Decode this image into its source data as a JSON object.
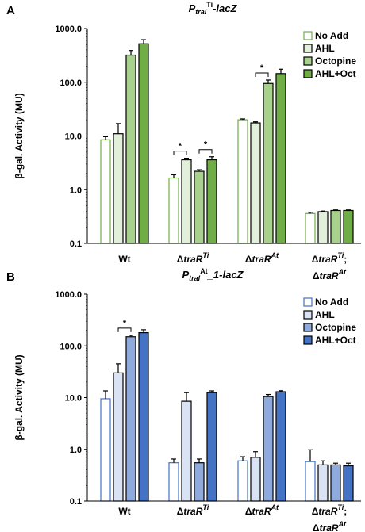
{
  "chart_data": [
    {
      "type": "bar",
      "panel_label": "A",
      "title_main": "P",
      "title_sub": "traI",
      "title_sup": "Ti",
      "title_tail": "-lacZ",
      "ylabel": "β-gal. Activity (MU)",
      "yscale": "log",
      "ylim": [
        0.1,
        1000
      ],
      "yticks": [
        "1000.0",
        "100.0",
        "10.0",
        "1.0",
        "0.1"
      ],
      "legend_position": "top-right",
      "categories": [
        {
          "line1_pre": "",
          "line1_main": "Wt",
          "line1_sup": "",
          "line2_pre": "",
          "line2_main": "",
          "line2_sup": ""
        },
        {
          "line1_pre": "Δ",
          "line1_main": "traR",
          "line1_sup": "Ti",
          "line2_pre": "",
          "line2_main": "",
          "line2_sup": ""
        },
        {
          "line1_pre": "Δ",
          "line1_main": "traR",
          "line1_sup": "At",
          "line2_pre": "",
          "line2_main": "",
          "line2_sup": ""
        },
        {
          "line1_pre": "Δ",
          "line1_main": "traR",
          "line1_sup": "Ti",
          "line1_post": ";",
          "line2_pre": "Δ",
          "line2_main": "traR",
          "line2_sup": "At"
        }
      ],
      "series": [
        {
          "name": "No Add",
          "fill": "#ffffff",
          "stroke": "#70ad47",
          "values": [
            8.5,
            1.65,
            20,
            0.36
          ],
          "errors": [
            1.2,
            0.25,
            0.8,
            0.02
          ]
        },
        {
          "name": "AHL",
          "fill": "#e2efda",
          "stroke": "#000000",
          "values": [
            11,
            3.6,
            17.5,
            0.39
          ],
          "errors": [
            6,
            0.25,
            0.8,
            0.01
          ]
        },
        {
          "name": "Octopine",
          "fill": "#a9d18e",
          "stroke": "#000000",
          "values": [
            320,
            2.2,
            95,
            0.41
          ],
          "errors": [
            70,
            0.15,
            15,
            0.01
          ]
        },
        {
          "name": "AHL+Oct",
          "fill": "#70ad47",
          "stroke": "#000000",
          "values": [
            520,
            3.6,
            145,
            0.41
          ],
          "errors": [
            100,
            0.5,
            30,
            0.01
          ]
        }
      ],
      "significance": [
        {
          "label": "*",
          "category": 1,
          "from": 0,
          "to": 1
        },
        {
          "label": "*",
          "category": 1,
          "from": 2,
          "to": 3
        },
        {
          "label": "*",
          "category": 2,
          "from": 1,
          "to": 2
        }
      ]
    },
    {
      "type": "bar",
      "panel_label": "B",
      "title_main": "P",
      "title_sub": "traI",
      "title_sup": "At",
      "title_tail": "_1-lacZ",
      "ylabel": "β-gal. Activity (MU)",
      "yscale": "log",
      "ylim": [
        0.1,
        1000
      ],
      "yticks": [
        "1000.0",
        "100.0",
        "10.0",
        "1.0",
        "0.1"
      ],
      "legend_position": "top-right",
      "categories": [
        {
          "line1_pre": "",
          "line1_main": "Wt",
          "line1_sup": "",
          "line2_pre": "",
          "line2_main": "",
          "line2_sup": ""
        },
        {
          "line1_pre": "Δ",
          "line1_main": "traR",
          "line1_sup": "Ti",
          "line2_pre": "",
          "line2_main": "",
          "line2_sup": ""
        },
        {
          "line1_pre": "Δ",
          "line1_main": "traR",
          "line1_sup": "At",
          "line2_pre": "",
          "line2_main": "",
          "line2_sup": ""
        },
        {
          "line1_pre": "Δ",
          "line1_main": "traR",
          "line1_sup": "Ti",
          "line1_post": ";",
          "line2_pre": "Δ",
          "line2_main": "traR",
          "line2_sup": "At"
        }
      ],
      "series": [
        {
          "name": "No Add",
          "fill": "#ffffff",
          "stroke": "#4472c4",
          "values": [
            9.5,
            0.55,
            0.6,
            0.58
          ],
          "errors": [
            4,
            0.1,
            0.12,
            0.4
          ]
        },
        {
          "name": "AHL",
          "fill": "#dae3f3",
          "stroke": "#000000",
          "values": [
            30,
            8.5,
            0.7,
            0.5
          ],
          "errors": [
            15,
            4,
            0.2,
            0.1
          ]
        },
        {
          "name": "Octopine",
          "fill": "#8faadc",
          "stroke": "#000000",
          "values": [
            150,
            0.55,
            10.5,
            0.5
          ],
          "errors": [
            10,
            0.1,
            1,
            0.04
          ]
        },
        {
          "name": "AHL+Oct",
          "fill": "#4472c4",
          "stroke": "#000000",
          "values": [
            180,
            12.5,
            13,
            0.48
          ],
          "errors": [
            25,
            1,
            0.6,
            0.06
          ]
        }
      ],
      "significance": [
        {
          "label": "*",
          "category": 0,
          "from": 1,
          "to": 2
        }
      ]
    }
  ]
}
